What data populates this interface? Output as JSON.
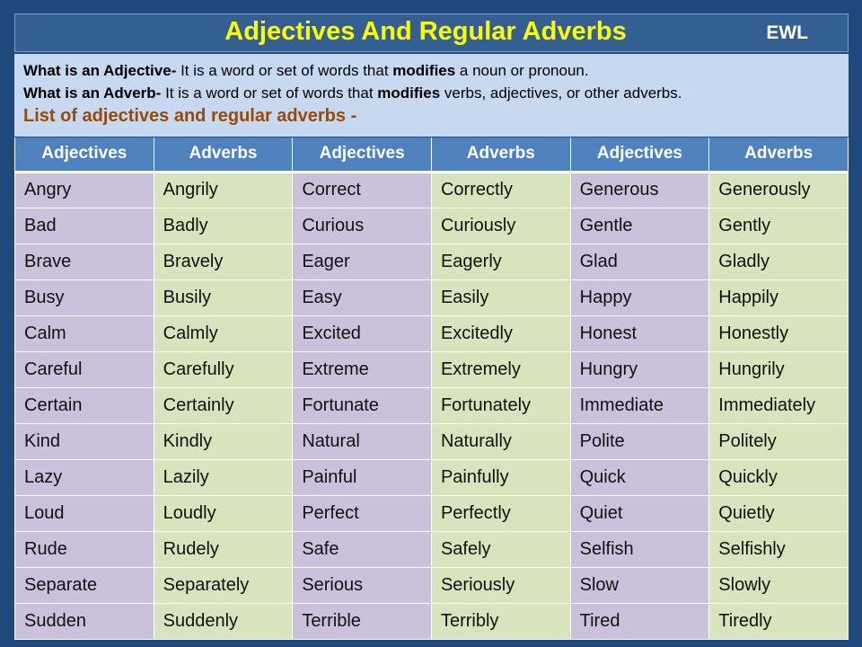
{
  "title": "Adjectives And Regular Adverbs",
  "logo": "EWL",
  "definitions": {
    "adjective_term": "What is an Adjective-",
    "adjective_text_1": " It is a word or set of words that ",
    "adjective_bold": "modifies",
    "adjective_text_2": " a noun or pronoun.",
    "adverb_term": "What is an Adverb-",
    "adverb_text_1": " It is a word or set of words that ",
    "adverb_bold": "modifies",
    "adverb_text_2": " verbs, adjectives, or other adverbs.",
    "list_heading": "List of adjectives and regular adverbs -"
  },
  "table": {
    "headers": [
      "Adjectives",
      "Adverbs",
      "Adjectives",
      "Adverbs",
      "Adjectives",
      "Adverbs"
    ],
    "rows": [
      [
        "Angry",
        "Angrily",
        "Correct",
        "Correctly",
        "Generous",
        "Generously"
      ],
      [
        "Bad",
        "Badly",
        "Curious",
        "Curiously",
        "Gentle",
        "Gently"
      ],
      [
        "Brave",
        "Bravely",
        "Eager",
        "Eagerly",
        "Glad",
        "Gladly"
      ],
      [
        "Busy",
        "Busily",
        "Easy",
        "Easily",
        "Happy",
        "Happily"
      ],
      [
        "Calm",
        "Calmly",
        "Excited",
        "Excitedly",
        "Honest",
        "Honestly"
      ],
      [
        "Careful",
        "Carefully",
        "Extreme",
        "Extremely",
        "Hungry",
        "Hungrily"
      ],
      [
        "Certain",
        "Certainly",
        "Fortunate",
        "Fortunately",
        "Immediate",
        "Immediately"
      ],
      [
        "Kind",
        "Kindly",
        "Natural",
        "Naturally",
        "Polite",
        "Politely"
      ],
      [
        "Lazy",
        "Lazily",
        "Painful",
        "Painfully",
        "Quick",
        "Quickly"
      ],
      [
        "Loud",
        "Loudly",
        "Perfect",
        "Perfectly",
        "Quiet",
        "Quietly"
      ],
      [
        "Rude",
        "Rudely",
        "Safe",
        "Safely",
        "Selfish",
        "Selfishly"
      ],
      [
        "Separate",
        "Separately",
        "Serious",
        "Seriously",
        "Slow",
        "Slowly"
      ],
      [
        "Sudden",
        "Suddenly",
        "Terrible",
        "Terribly",
        "Tired",
        "Tiredly"
      ]
    ]
  },
  "colors": {
    "background": "#1f497d",
    "title_bar": "#335f91",
    "title_text": "#ffff00",
    "definition_bg": "#c6d9f0",
    "header_bg": "#4f81bd",
    "adjective_cell": "#ccc1da",
    "adverb_cell": "#d7e4bd",
    "list_heading": "#984807"
  }
}
